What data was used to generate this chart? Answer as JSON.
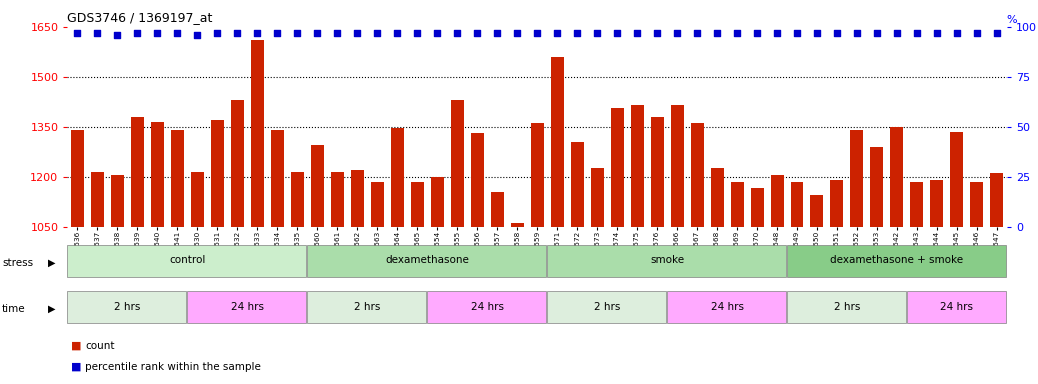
{
  "title": "GDS3746 / 1369197_at",
  "ylim_left": [
    1050,
    1650
  ],
  "ylim_right": [
    0,
    100
  ],
  "yticks_left": [
    1050,
    1200,
    1350,
    1500,
    1650
  ],
  "yticks_right": [
    0,
    25,
    50,
    75,
    100
  ],
  "samples": [
    "GSM389536",
    "GSM389537",
    "GSM389538",
    "GSM389539",
    "GSM389540",
    "GSM389541",
    "GSM389530",
    "GSM389531",
    "GSM389532",
    "GSM389533",
    "GSM389534",
    "GSM389535",
    "GSM389560",
    "GSM389561",
    "GSM389562",
    "GSM389563",
    "GSM389564",
    "GSM389565",
    "GSM389554",
    "GSM389555",
    "GSM389556",
    "GSM389557",
    "GSM389558",
    "GSM389559",
    "GSM389571",
    "GSM389572",
    "GSM389573",
    "GSM389574",
    "GSM389575",
    "GSM389576",
    "GSM389566",
    "GSM389567",
    "GSM389568",
    "GSM389569",
    "GSM389570",
    "GSM389548",
    "GSM389549",
    "GSM389550",
    "GSM389551",
    "GSM389552",
    "GSM389553",
    "GSM389542",
    "GSM389543",
    "GSM389544",
    "GSM389545",
    "GSM389546",
    "GSM389547"
  ],
  "counts": [
    1340,
    1215,
    1205,
    1380,
    1365,
    1340,
    1215,
    1370,
    1430,
    1610,
    1340,
    1215,
    1295,
    1215,
    1220,
    1185,
    1345,
    1185,
    1200,
    1430,
    1330,
    1155,
    1060,
    1360,
    1560,
    1305,
    1225,
    1405,
    1415,
    1380,
    1415,
    1360,
    1225,
    1185,
    1165,
    1205,
    1185,
    1145,
    1190,
    1340,
    1290,
    1350,
    1185,
    1190,
    1335,
    1185,
    1210
  ],
  "percentiles": [
    97,
    97,
    96,
    97,
    97,
    97,
    96,
    97,
    97,
    97,
    97,
    97,
    97,
    97,
    97,
    97,
    97,
    97,
    97,
    97,
    97,
    97,
    97,
    97,
    97,
    97,
    97,
    97,
    97,
    97,
    97,
    97,
    97,
    97,
    97,
    97,
    97,
    97,
    97,
    97,
    97,
    97,
    97,
    97,
    97,
    97,
    97
  ],
  "bar_color": "#cc2200",
  "dot_color": "#0000cc",
  "stress_groups": [
    {
      "label": "control",
      "start": 0,
      "end": 12,
      "color": "#cceecc"
    },
    {
      "label": "dexamethasone",
      "start": 12,
      "end": 24,
      "color": "#aaddaa"
    },
    {
      "label": "smoke",
      "start": 24,
      "end": 36,
      "color": "#aaddaa"
    },
    {
      "label": "dexamethasone + smoke",
      "start": 36,
      "end": 47,
      "color": "#88cc88"
    }
  ],
  "time_groups": [
    {
      "label": "2 hrs",
      "start": 0,
      "end": 6,
      "color": "#ddeedd"
    },
    {
      "label": "24 hrs",
      "start": 6,
      "end": 12,
      "color": "#ffaaff"
    },
    {
      "label": "2 hrs",
      "start": 12,
      "end": 18,
      "color": "#ddeedd"
    },
    {
      "label": "24 hrs",
      "start": 18,
      "end": 24,
      "color": "#ffaaff"
    },
    {
      "label": "2 hrs",
      "start": 24,
      "end": 30,
      "color": "#ddeedd"
    },
    {
      "label": "24 hrs",
      "start": 30,
      "end": 36,
      "color": "#ffaaff"
    },
    {
      "label": "2 hrs",
      "start": 36,
      "end": 42,
      "color": "#ddeedd"
    },
    {
      "label": "24 hrs",
      "start": 42,
      "end": 47,
      "color": "#ffaaff"
    }
  ],
  "legend_count_label": "count",
  "legend_pct_label": "percentile rank within the sample"
}
